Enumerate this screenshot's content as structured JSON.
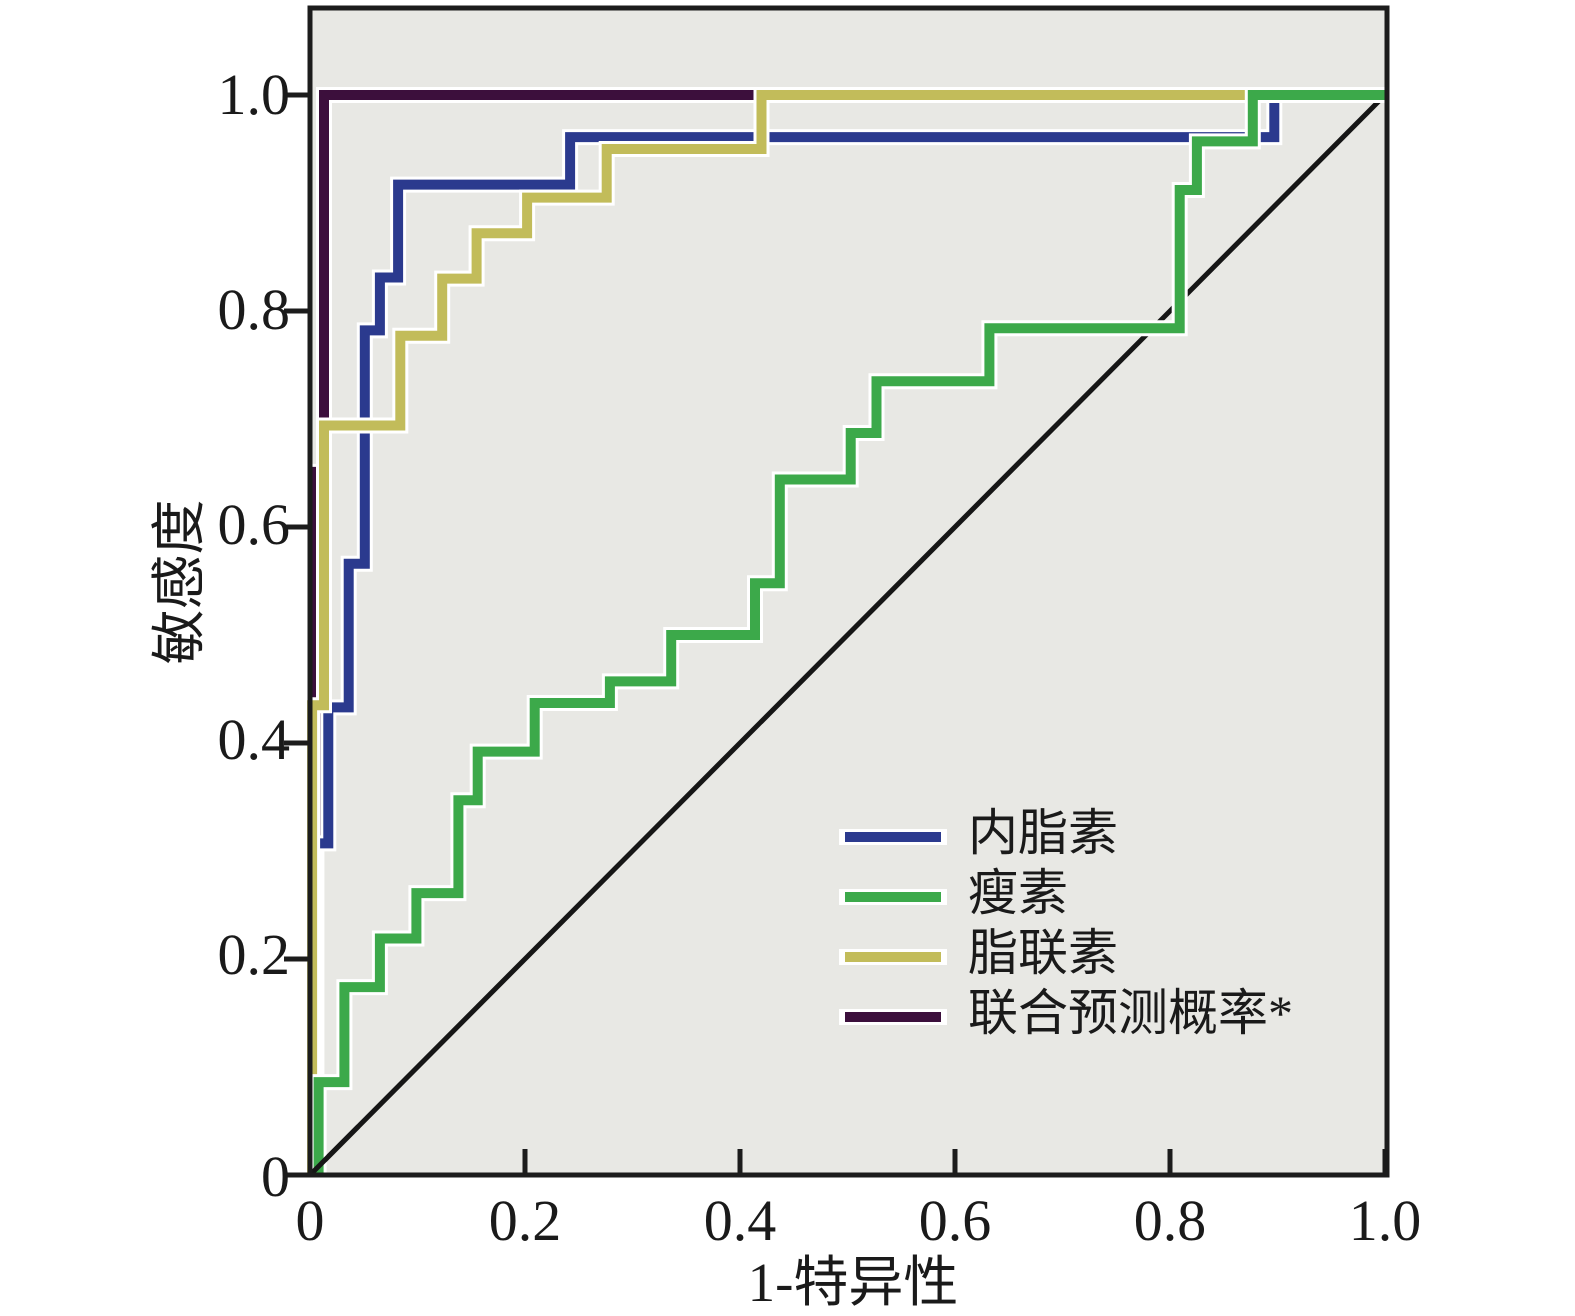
{
  "chart_data": {
    "type": "line",
    "subtype": "roc-curves",
    "xlabel": "1-特异性",
    "ylabel": "敏感度",
    "xlim": [
      0,
      1
    ],
    "ylim": [
      0,
      1
    ],
    "grid": false,
    "legend_position": "lower-right-inside",
    "plot_bg": "#e8e8e4",
    "frame_color": "#1c1c1c",
    "diagonal_reference": {
      "color": "#161616",
      "points": [
        [
          0,
          0
        ],
        [
          1,
          1
        ]
      ]
    },
    "xticks": [
      {
        "v": 0,
        "label": "0"
      },
      {
        "v": 0.2,
        "label": "0.2"
      },
      {
        "v": 0.4,
        "label": "0.4"
      },
      {
        "v": 0.6,
        "label": "0.6"
      },
      {
        "v": 0.8,
        "label": "0.8"
      },
      {
        "v": 1.0,
        "label": "1.0"
      }
    ],
    "yticks": [
      {
        "v": 1.0,
        "label": "1.0"
      },
      {
        "v": 0.8,
        "label": "0.8"
      },
      {
        "v": 0.6,
        "label": "0.6"
      },
      {
        "v": 0.4,
        "label": "0.4"
      },
      {
        "v": 0.2,
        "label": "0.2"
      },
      {
        "v": 0,
        "label": "0"
      }
    ],
    "series": [
      {
        "key": "visfatin",
        "name": "内脂素",
        "color": "#2b3a8e",
        "z": 2,
        "points": [
          [
            0.004,
            0
          ],
          [
            0.004,
            0.307
          ],
          [
            0.017,
            0.307
          ],
          [
            0.017,
            0.433
          ],
          [
            0.036,
            0.433
          ],
          [
            0.036,
            0.566
          ],
          [
            0.051,
            0.566
          ],
          [
            0.051,
            0.782
          ],
          [
            0.065,
            0.782
          ],
          [
            0.065,
            0.831
          ],
          [
            0.082,
            0.831
          ],
          [
            0.082,
            0.917
          ],
          [
            0.242,
            0.917
          ],
          [
            0.242,
            0.961
          ],
          [
            0.897,
            0.961
          ],
          [
            0.897,
            1.0
          ],
          [
            1,
            1
          ]
        ]
      },
      {
        "key": "leptin",
        "name": "瘦素",
        "color": "#3ca94a",
        "z": 4,
        "points": [
          [
            0.008,
            0
          ],
          [
            0.008,
            0.086
          ],
          [
            0.032,
            0.086
          ],
          [
            0.032,
            0.174
          ],
          [
            0.065,
            0.174
          ],
          [
            0.065,
            0.219
          ],
          [
            0.099,
            0.219
          ],
          [
            0.099,
            0.261
          ],
          [
            0.138,
            0.261
          ],
          [
            0.138,
            0.347
          ],
          [
            0.156,
            0.347
          ],
          [
            0.156,
            0.392
          ],
          [
            0.209,
            0.392
          ],
          [
            0.209,
            0.437
          ],
          [
            0.279,
            0.437
          ],
          [
            0.279,
            0.457
          ],
          [
            0.336,
            0.457
          ],
          [
            0.336,
            0.5
          ],
          [
            0.414,
            0.5
          ],
          [
            0.414,
            0.548
          ],
          [
            0.437,
            0.548
          ],
          [
            0.437,
            0.644
          ],
          [
            0.503,
            0.644
          ],
          [
            0.503,
            0.687
          ],
          [
            0.527,
            0.687
          ],
          [
            0.527,
            0.735
          ],
          [
            0.632,
            0.735
          ],
          [
            0.632,
            0.784
          ],
          [
            0.809,
            0.784
          ],
          [
            0.809,
            0.912
          ],
          [
            0.825,
            0.912
          ],
          [
            0.825,
            0.957
          ],
          [
            0.877,
            0.957
          ],
          [
            0.877,
            1.0
          ],
          [
            1,
            1
          ]
        ]
      },
      {
        "key": "adiponectin",
        "name": "脂联素",
        "color": "#c2bc5a",
        "z": 3,
        "points": [
          [
            0.002,
            0
          ],
          [
            0.002,
            0.435
          ],
          [
            0.013,
            0.435
          ],
          [
            0.013,
            0.694
          ],
          [
            0.084,
            0.694
          ],
          [
            0.084,
            0.777
          ],
          [
            0.123,
            0.777
          ],
          [
            0.123,
            0.83
          ],
          [
            0.155,
            0.83
          ],
          [
            0.155,
            0.872
          ],
          [
            0.202,
            0.872
          ],
          [
            0.202,
            0.905
          ],
          [
            0.276,
            0.905
          ],
          [
            0.276,
            0.95
          ],
          [
            0.42,
            0.95
          ],
          [
            0.42,
            1.0
          ],
          [
            1,
            1
          ]
        ]
      },
      {
        "key": "combined",
        "name": "联合预测概率*",
        "color": "#3c0f3c",
        "z": 1,
        "points": [
          [
            0.006,
            0
          ],
          [
            0.006,
            0.651
          ],
          [
            0.013,
            0.651
          ],
          [
            0.013,
            1.0
          ],
          [
            1,
            1
          ]
        ]
      }
    ]
  }
}
